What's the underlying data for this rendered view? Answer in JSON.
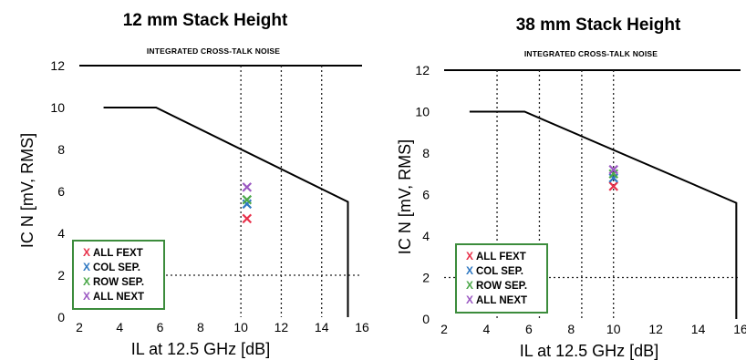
{
  "chart_data": [
    {
      "type": "line",
      "title": "12 mm Stack Height",
      "subtitle": "INTEGRATED CROSS-TALK NOISE",
      "xlabel": "IL at 12.5 GHz [dB]",
      "ylabel": "IC N [mV, RMS]",
      "xlim": [
        2,
        16
      ],
      "ylim": [
        0,
        12
      ],
      "xticks": [
        "2",
        "4",
        "6",
        "8",
        "10",
        "12",
        "14",
        "16"
      ],
      "yticks": [
        "0",
        "2",
        "4",
        "6",
        "8",
        "10",
        "12"
      ],
      "limit_line": {
        "x": [
          3.2,
          5.8,
          15.3,
          15.3
        ],
        "y": [
          10,
          10,
          5.5,
          0
        ]
      },
      "vertical_gridlines": [
        10,
        12,
        14
      ],
      "horizontal_gridlines": [
        2
      ],
      "legend_position": "bottom-left",
      "series": [
        {
          "name": "ALL FEXT",
          "color": "#e8304a",
          "x": [
            10.3
          ],
          "y": [
            4.7
          ]
        },
        {
          "name": "COL SEP.",
          "color": "#2f78c2",
          "x": [
            10.3
          ],
          "y": [
            5.4
          ]
        },
        {
          "name": "ROW SEP.",
          "color": "#4ca84a",
          "x": [
            10.3
          ],
          "y": [
            5.6
          ]
        },
        {
          "name": "ALL NEXT",
          "color": "#9b59c2",
          "x": [
            10.3
          ],
          "y": [
            6.2
          ]
        }
      ]
    },
    {
      "type": "line",
      "title": "38 mm Stack Height",
      "subtitle": "INTEGRATED CROSS-TALK NOISE",
      "xlabel": "IL at 12.5 GHz [dB]",
      "ylabel": "IC N [mV, RMS]",
      "xlim": [
        2,
        16
      ],
      "ylim": [
        0,
        12
      ],
      "xticks": [
        "2",
        "4",
        "6",
        "8",
        "10",
        "12",
        "14",
        "16"
      ],
      "yticks": [
        "0",
        "2",
        "4",
        "6",
        "8",
        "10",
        "12"
      ],
      "limit_line": {
        "x": [
          3.2,
          5.8,
          15.8,
          15.8
        ],
        "y": [
          10,
          10,
          5.6,
          0
        ]
      },
      "vertical_gridlines": [
        4.5,
        6.5,
        8.5,
        10
      ],
      "horizontal_gridlines": [
        2
      ],
      "legend_position": "bottom-left",
      "series": [
        {
          "name": "ALL FEXT",
          "color": "#e8304a",
          "x": [
            10
          ],
          "y": [
            6.4
          ]
        },
        {
          "name": "COL SEP.",
          "color": "#2f78c2",
          "x": [
            10
          ],
          "y": [
            6.8
          ]
        },
        {
          "name": "ROW SEP.",
          "color": "#4ca84a",
          "x": [
            10
          ],
          "y": [
            7.0
          ]
        },
        {
          "name": "ALL NEXT",
          "color": "#9b59c2",
          "x": [
            10
          ],
          "y": [
            7.2
          ]
        }
      ]
    }
  ],
  "legend_border_color": "#3c8c3c",
  "marker_symbol": "X"
}
